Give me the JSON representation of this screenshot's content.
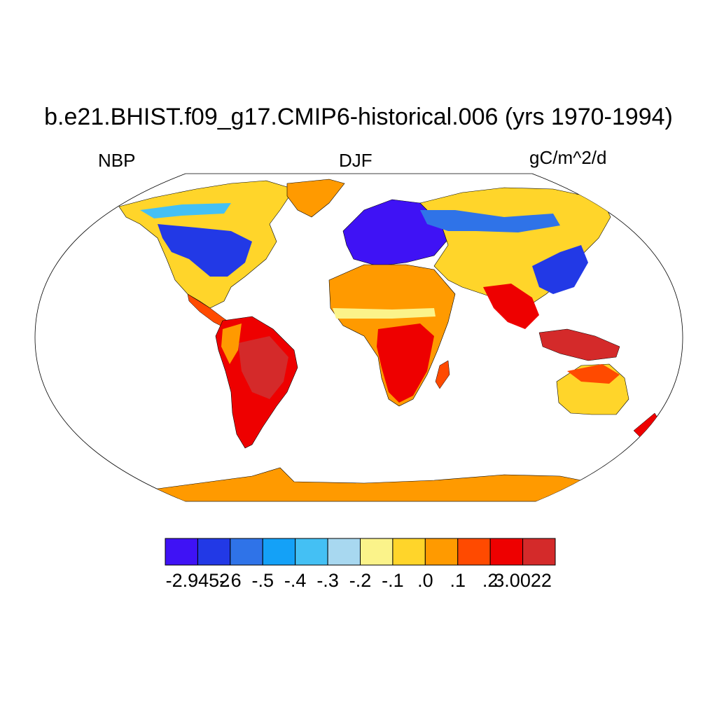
{
  "title": "b.e21.BHIST.f09_g17.CMIP6-historical.006 (yrs 1970-1994)",
  "left_label": "NBP",
  "center_label": "DJF",
  "right_label": "gC/m^2/d",
  "colorbar": {
    "colors": [
      "#3f12f5",
      "#2239e6",
      "#2f73e8",
      "#14a1f7",
      "#44c0f4",
      "#a8d8f0",
      "#fbf38a",
      "#ffd52a",
      "#ff9a00",
      "#ff4a00",
      "#ee0000",
      "#d42a2a"
    ],
    "labels": [
      "-2.9452",
      "-.6",
      "-.5",
      "-.4",
      "-.3",
      "-.2",
      "-.1",
      ".0",
      ".1",
      ".2",
      "3.0022"
    ]
  },
  "map": {
    "projection": "Robinson",
    "ocean_color": "#ffffff",
    "antarctica_color": "#ff9a00"
  }
}
